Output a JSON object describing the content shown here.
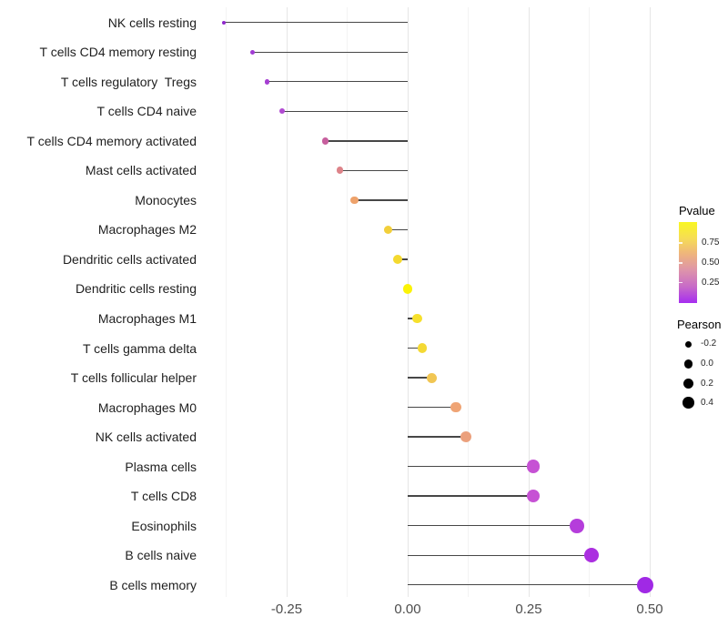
{
  "chart_data": {
    "type": "lollipop",
    "orientation": "horizontal",
    "title": "",
    "xlabel": "",
    "ylabel": "",
    "grid": "vertical light gray, no panel border, white background",
    "xlim": [
      -0.43,
      0.53
    ],
    "x_tick_labels": [
      "-0.25",
      "0.00",
      "0.25",
      "0.50"
    ],
    "x_tick_values": [
      -0.25,
      0.0,
      0.25,
      0.5
    ],
    "x_minor_gridlines": [
      -0.375,
      -0.125,
      0.125,
      0.375
    ],
    "baseline_x": 0.0,
    "color_encoding": "Pvalue (plasma gradient: purple = low, yellow = high)",
    "size_encoding": "Pearson (larger dot = higher Pearson value)",
    "categories": [
      "NK cells resting",
      "T cells CD4 memory resting",
      "T cells regulatory  Tregs",
      "T cells CD4 naive",
      "T cells CD4 memory activated",
      "Mast cells activated",
      "Monocytes",
      "Macrophages M2",
      "Dendritic cells activated",
      "Dendritic cells resting",
      "Macrophages M1",
      "T cells gamma delta",
      "T cells follicular helper",
      "Macrophages M0",
      "NK cells activated",
      "Plasma cells",
      "T cells CD8",
      "Eosinophils",
      "B cells naive",
      "B cells memory"
    ],
    "series": [
      {
        "name": "Pearson",
        "values": [
          -0.38,
          -0.32,
          -0.29,
          -0.26,
          -0.17,
          -0.14,
          -0.11,
          -0.04,
          -0.02,
          0.0,
          0.02,
          0.03,
          0.05,
          0.1,
          0.12,
          0.26,
          0.26,
          0.35,
          0.38,
          0.49
        ]
      }
    ],
    "point_colors": [
      "#8f28cb",
      "#a13bd3",
      "#a63fd2",
      "#b14bd2",
      "#c75f9e",
      "#dd8389",
      "#eea26b",
      "#f2cf3a",
      "#f4d92f",
      "#fbf306",
      "#f6e02c",
      "#f4d934",
      "#f1c653",
      "#efa475",
      "#eba07c",
      "#c652d4",
      "#c652d4",
      "#b53ddb",
      "#ab2fe0",
      "#a029e5"
    ]
  },
  "legends": {
    "pvalue": {
      "title": "Pvalue",
      "tick_labels": [
        "0.75",
        "0.50",
        "0.25"
      ],
      "gradient_stops": [
        "#f9f722",
        "#f6dd55",
        "#eeb37e",
        "#dd93ab",
        "#c76ac8",
        "#a62df0"
      ]
    },
    "pearson": {
      "title": "Pearson",
      "items": [
        {
          "label": "-0.2",
          "diameter": 7.5
        },
        {
          "label": "0.0",
          "diameter": 9.5
        },
        {
          "label": "0.2",
          "diameter": 11
        },
        {
          "label": "0.4",
          "diameter": 12.5
        }
      ]
    }
  }
}
